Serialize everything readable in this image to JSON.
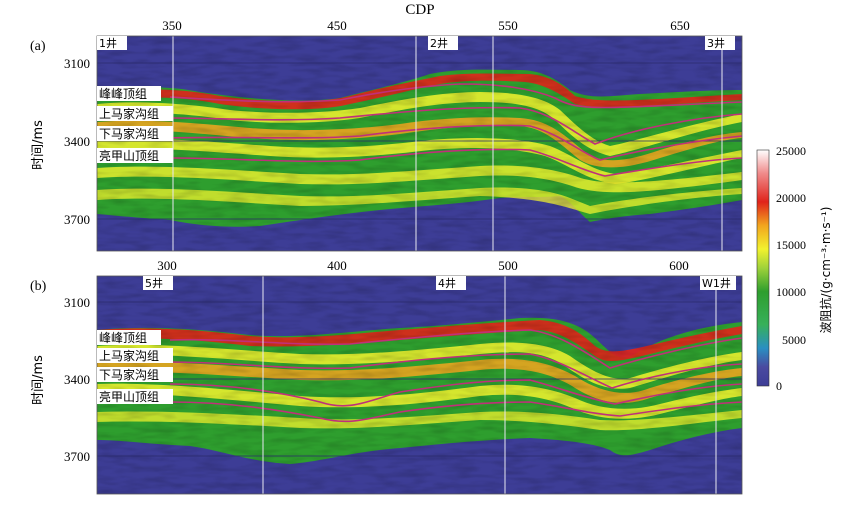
{
  "title": "CDP",
  "panels": [
    {
      "id": "a",
      "label": "(a)",
      "xTicks": [
        350,
        450,
        550,
        650
      ],
      "yTicks": [
        3100,
        3400,
        3700
      ],
      "yLabel": "时间/ms",
      "wells": [
        {
          "name": "1井"
        },
        {
          "name": "2井"
        },
        {
          "name": "3井"
        }
      ],
      "horizons": [
        "峰峰顶组",
        "上马家沟组",
        "下马家沟组",
        "亮甲山顶组"
      ]
    },
    {
      "id": "b",
      "label": "(b)",
      "xTicks": [
        300,
        400,
        500,
        600
      ],
      "yTicks": [
        3100,
        3400,
        3700
      ],
      "yLabel": "时间/ms",
      "wells": [
        {
          "name": "5井"
        },
        {
          "name": "4井"
        },
        {
          "name": "W1井"
        }
      ],
      "horizons": [
        "峰峰顶组",
        "上马家沟组",
        "下马家沟组",
        "亮甲山顶组"
      ]
    }
  ],
  "colorbar": {
    "title": "波阻抗/(g·cm⁻³·m·s⁻¹)",
    "ticks": [
      25000,
      20000,
      15000,
      10000,
      5000,
      0
    ],
    "colors": [
      "#3d3d96",
      "#2a8fc2",
      "#37b05a",
      "#2e9e2e",
      "#9fd23a",
      "#f2f22e",
      "#f2a51e",
      "#e0231b",
      "#f08a8a",
      "#ffffff"
    ]
  }
}
